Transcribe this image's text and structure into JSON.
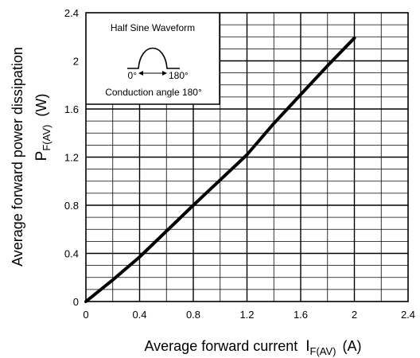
{
  "chart_data": {
    "type": "line",
    "xlim": [
      0,
      2.4
    ],
    "ylim": [
      0,
      2.4
    ],
    "x_ticks": [
      "0",
      "0.4",
      "0.8",
      "1.2",
      "1.6",
      "2",
      "2.4"
    ],
    "y_ticks": [
      "0",
      "0.4",
      "0.8",
      "1.2",
      "1.6",
      "2",
      "2.4"
    ],
    "x_minor_step": 0.2,
    "y_minor_step": 0.1,
    "grid": true,
    "xlabel": {
      "text": "Average forward current",
      "symbol": "I",
      "subscript": "F(AV)",
      "unit": "(A)"
    },
    "ylabel": {
      "line1": "Average forward power dissipation",
      "symbol": "P",
      "subscript": "F(AV)",
      "unit": "(W)"
    },
    "series": [
      {
        "x": [
          0,
          0.2,
          0.4,
          0.6,
          0.8,
          1.0,
          1.2,
          1.4,
          1.6,
          1.8,
          2.0
        ],
        "y": [
          0,
          0.18,
          0.37,
          0.585,
          0.8,
          1.01,
          1.22,
          1.48,
          1.72,
          1.96,
          2.19
        ]
      }
    ],
    "inset": {
      "title": "Half Sine Waveform",
      "left_label": "0°",
      "right_label": "180°",
      "caption": "Conduction angle 180°"
    }
  }
}
